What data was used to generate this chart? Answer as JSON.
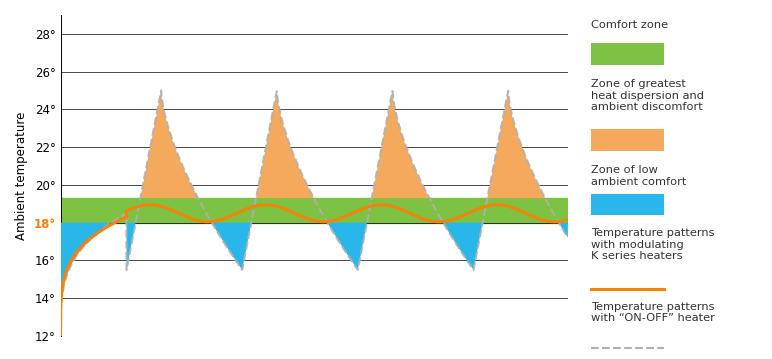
{
  "ylabel": "Ambient temperature",
  "ylim": [
    12,
    29
  ],
  "yticks": [
    12,
    14,
    16,
    18,
    20,
    22,
    24,
    26,
    28
  ],
  "comfort_zone_low": 18.0,
  "comfort_zone_high": 19.3,
  "comfort_color": "#7dc242",
  "orange_zone_color": "#f5a95c",
  "blue_zone_color": "#29b6e8",
  "orange_line_color": "#f5820a",
  "gray_dashed_color": "#b0b0b0",
  "highlight_18_color": "#f5820a",
  "background_color": "#ffffff",
  "legend_comfort_zone": "Comfort zone",
  "legend_orange_zone": "Zone of greatest\nheat dispersion and\nambient discomfort",
  "legend_blue_zone": "Zone of low\nambient comfort",
  "legend_orange_line": "Temperature patterns\nwith modulating\nK series heaters",
  "legend_gray_dashed": "Temperature patterns\nwith “ON-OFF” heater"
}
